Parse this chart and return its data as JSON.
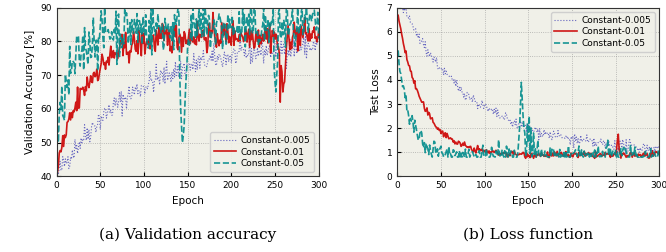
{
  "epochs": 300,
  "acc_ylim": [
    40,
    90
  ],
  "acc_yticks": [
    40,
    50,
    60,
    70,
    80,
    90
  ],
  "loss_ylim": [
    0,
    7
  ],
  "loss_yticks": [
    0,
    1,
    2,
    3,
    4,
    5,
    6,
    7
  ],
  "xticks": [
    0,
    50,
    100,
    150,
    200,
    250,
    300
  ],
  "xlabel": "Epoch",
  "acc_ylabel": "Validation Accuracy [%]",
  "loss_ylabel": "Test Loss",
  "subtitle_a": "(a) Validation accuracy",
  "subtitle_b": "(b) Loss function",
  "legend_labels": [
    "Constant-0.005",
    "Constant-0.01",
    "Constant-0.05"
  ],
  "colors": [
    "#5555bb",
    "#cc0000",
    "#008b8b"
  ],
  "linestyles": [
    "dotted",
    "solid",
    "dashed"
  ],
  "linewidths": [
    0.8,
    1.2,
    1.2
  ],
  "grid_color": "#999999",
  "bg_color": "#f0f0e8",
  "subtitle_fontsize": 11,
  "tick_fontsize": 6.5,
  "label_fontsize": 7.5,
  "legend_fontsize": 6.5
}
